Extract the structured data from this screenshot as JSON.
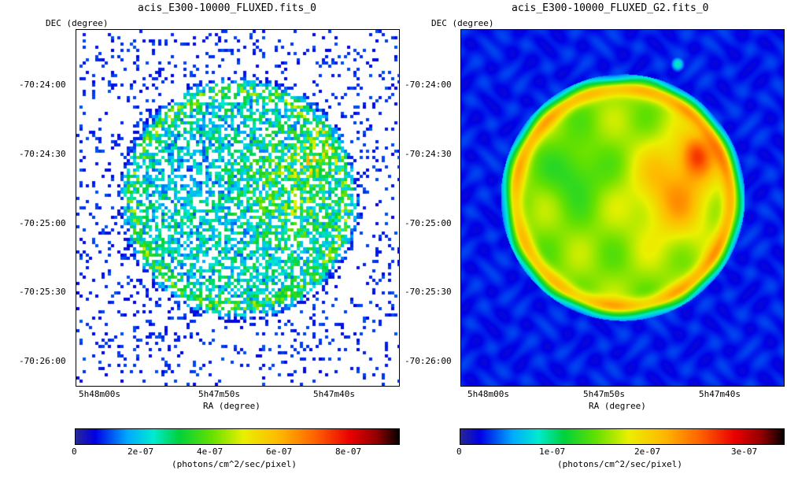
{
  "panels": [
    {
      "title": "acis_E300-10000_FLUXED.fits_0",
      "dec_label": "DEC (degree)",
      "ra_label": "RA (degree)",
      "dec_ticks": [
        "-70:24:00",
        "-70:24:30",
        "-70:25:00",
        "-70:25:30",
        "-70:26:00"
      ],
      "ra_ticks": [
        "5h48m00s",
        "5h47m50s",
        "5h47m40s"
      ],
      "colorbar": {
        "ticks": [
          "0",
          "2e-07",
          "4e-07",
          "6e-07",
          "8e-07"
        ],
        "unit": "(photons/cm^2/sec/pixel)"
      },
      "style": "raw"
    },
    {
      "title": "acis_E300-10000_FLUXED_G2.fits_0",
      "dec_label": "DEC (degree)",
      "ra_label": "RA (degree)",
      "dec_ticks": [
        "-70:24:00",
        "-70:24:30",
        "-70:25:00",
        "-70:25:30",
        "-70:26:00"
      ],
      "ra_ticks": [
        "5h48m00s",
        "5h47m50s",
        "5h47m40s"
      ],
      "colorbar": {
        "ticks": [
          "0",
          "1e-07",
          "2e-07",
          "3e-07"
        ],
        "unit": "(photons/cm^2/sec/pixel)"
      },
      "style": "smoothed"
    }
  ]
}
